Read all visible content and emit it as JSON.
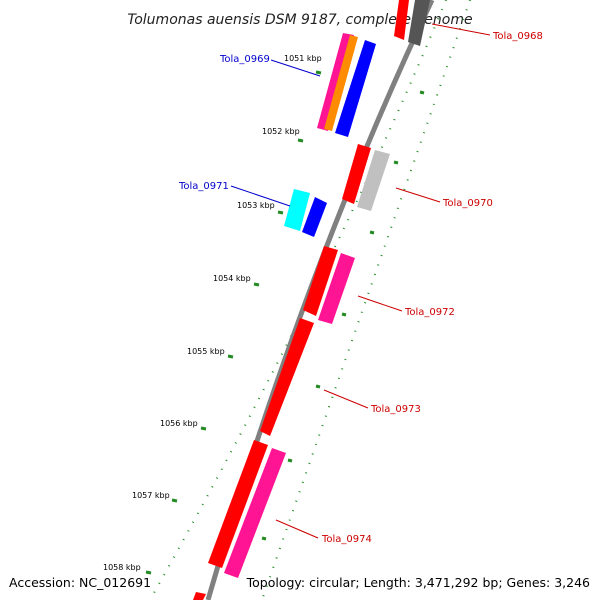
{
  "title": "Tolumonas auensis DSM 9187, complete genome",
  "accession": "Accession: NC_012691",
  "summary": "Topology: circular; Length: 3,471,292 bp; Genes: 3,246",
  "colors": {
    "backbone": "#808080",
    "tick": "#228B22",
    "gene_red": "#ff0000",
    "gene_blue": "#0000ff",
    "gene_cyan": "#00ffff",
    "gene_magenta": "#ff1493",
    "gene_orange": "#ff8c00",
    "gene_gray": "#c0c0c0",
    "gene_dark": "#555555",
    "label_red": "#cc0000",
    "label_blue": "#0000cc"
  },
  "kbp_labels": [
    "1051 kbp",
    "1052 kbp",
    "1053 kbp",
    "1054 kbp",
    "1055 kbp",
    "1056 kbp",
    "1057 kbp",
    "1058 kbp"
  ],
  "gene_labels": [
    {
      "text": "Tola_0968",
      "color": "red"
    },
    {
      "text": "Tola_0969",
      "color": "blue"
    },
    {
      "text": "Tola_0970",
      "color": "red"
    },
    {
      "text": "Tola_0971",
      "color": "blue"
    },
    {
      "text": "Tola_0972",
      "color": "red"
    },
    {
      "text": "Tola_0973",
      "color": "red"
    },
    {
      "text": "Tola_0974",
      "color": "red"
    }
  ]
}
